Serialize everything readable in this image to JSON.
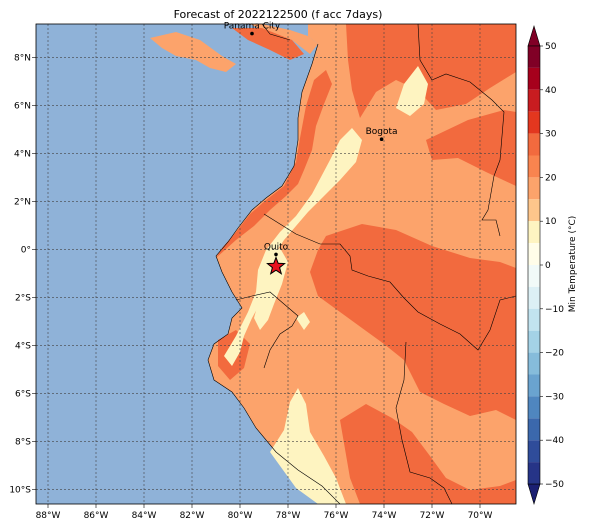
{
  "title": "Forecast of 2022122500 (f acc 7days)",
  "map": {
    "lon_range": [
      -88.5,
      -68.5
    ],
    "lat_range": [
      -10.6,
      9.4
    ],
    "lon_ticks": [
      {
        "value": -88,
        "label": "88°W"
      },
      {
        "value": -86,
        "label": "86°W"
      },
      {
        "value": -84,
        "label": "84°W"
      },
      {
        "value": -82,
        "label": "82°W"
      },
      {
        "value": -80,
        "label": "80°W"
      },
      {
        "value": -78,
        "label": "78°W"
      },
      {
        "value": -76,
        "label": "76°W"
      },
      {
        "value": -74,
        "label": "74°W"
      },
      {
        "value": -72,
        "label": "72°W"
      },
      {
        "value": -70,
        "label": "70°W"
      }
    ],
    "lat_ticks": [
      {
        "value": 8,
        "label": "8°N"
      },
      {
        "value": 6,
        "label": "6°N"
      },
      {
        "value": 4,
        "label": "4°N"
      },
      {
        "value": 2,
        "label": "2°N"
      },
      {
        "value": 0,
        "label": "0°"
      },
      {
        "value": -2,
        "label": "2°S"
      },
      {
        "value": -4,
        "label": "4°S"
      },
      {
        "value": -6,
        "label": "6°S"
      },
      {
        "value": -8,
        "label": "8°S"
      },
      {
        "value": -10,
        "label": "10°S"
      }
    ],
    "grid": true,
    "cities": [
      {
        "name": "Panama City",
        "lon": -79.5,
        "lat": 9.0
      },
      {
        "name": "Bogota",
        "lon": -74.1,
        "lat": 4.6
      },
      {
        "name": "Quito",
        "lon": -78.5,
        "lat": -0.2
      }
    ],
    "marker": {
      "type": "red-star",
      "lon": -78.5,
      "lat": -0.7
    },
    "colors": {
      "ocean": "#8fb2d8",
      "band_10_20": "#fef4c1",
      "band_20_30": "#fca36b",
      "band_30_40": "#f26a3e",
      "band_0_10": "#fffde9",
      "city_dot": "#000000",
      "star": "#e8101d"
    }
  },
  "colorbar": {
    "label": "Min Temperature (°C)",
    "ticks": [
      {
        "value": 50,
        "label": "50"
      },
      {
        "value": 40,
        "label": "40"
      },
      {
        "value": 30,
        "label": "30"
      },
      {
        "value": 20,
        "label": "20"
      },
      {
        "value": 10,
        "label": "10"
      },
      {
        "value": 0,
        "label": "0"
      },
      {
        "value": -10,
        "label": "−10"
      },
      {
        "value": -20,
        "label": "−20"
      },
      {
        "value": -30,
        "label": "−30"
      },
      {
        "value": -40,
        "label": "−40"
      },
      {
        "value": -50,
        "label": "−50"
      }
    ],
    "bands": [
      {
        "from": 45,
        "to": 50,
        "color": "#800026"
      },
      {
        "from": 40,
        "to": 45,
        "color": "#a6001c"
      },
      {
        "from": 35,
        "to": 40,
        "color": "#c81c20"
      },
      {
        "from": 30,
        "to": 35,
        "color": "#e3371f"
      },
      {
        "from": 25,
        "to": 30,
        "color": "#f26a3e"
      },
      {
        "from": 20,
        "to": 25,
        "color": "#f9844f"
      },
      {
        "from": 15,
        "to": 20,
        "color": "#fca36b"
      },
      {
        "from": 10,
        "to": 15,
        "color": "#fec68b"
      },
      {
        "from": 5,
        "to": 10,
        "color": "#fef4c1"
      },
      {
        "from": 0,
        "to": 5,
        "color": "#fffde9"
      },
      {
        "from": -5,
        "to": 0,
        "color": "#f1faf8"
      },
      {
        "from": -10,
        "to": -5,
        "color": "#dcf0f5"
      },
      {
        "from": -15,
        "to": -10,
        "color": "#c1e3ef"
      },
      {
        "from": -20,
        "to": -15,
        "color": "#a4d2e6"
      },
      {
        "from": -25,
        "to": -20,
        "color": "#86bcdb"
      },
      {
        "from": -30,
        "to": -25,
        "color": "#6aa3cf"
      },
      {
        "from": -35,
        "to": -30,
        "color": "#4f86bf"
      },
      {
        "from": -40,
        "to": -35,
        "color": "#3b68ac"
      },
      {
        "from": -45,
        "to": -40,
        "color": "#2f4c9a"
      },
      {
        "from": -50,
        "to": -45,
        "color": "#263487"
      }
    ],
    "extend_top_color": "#800026",
    "extend_bottom_color": "#1b1f72"
  }
}
